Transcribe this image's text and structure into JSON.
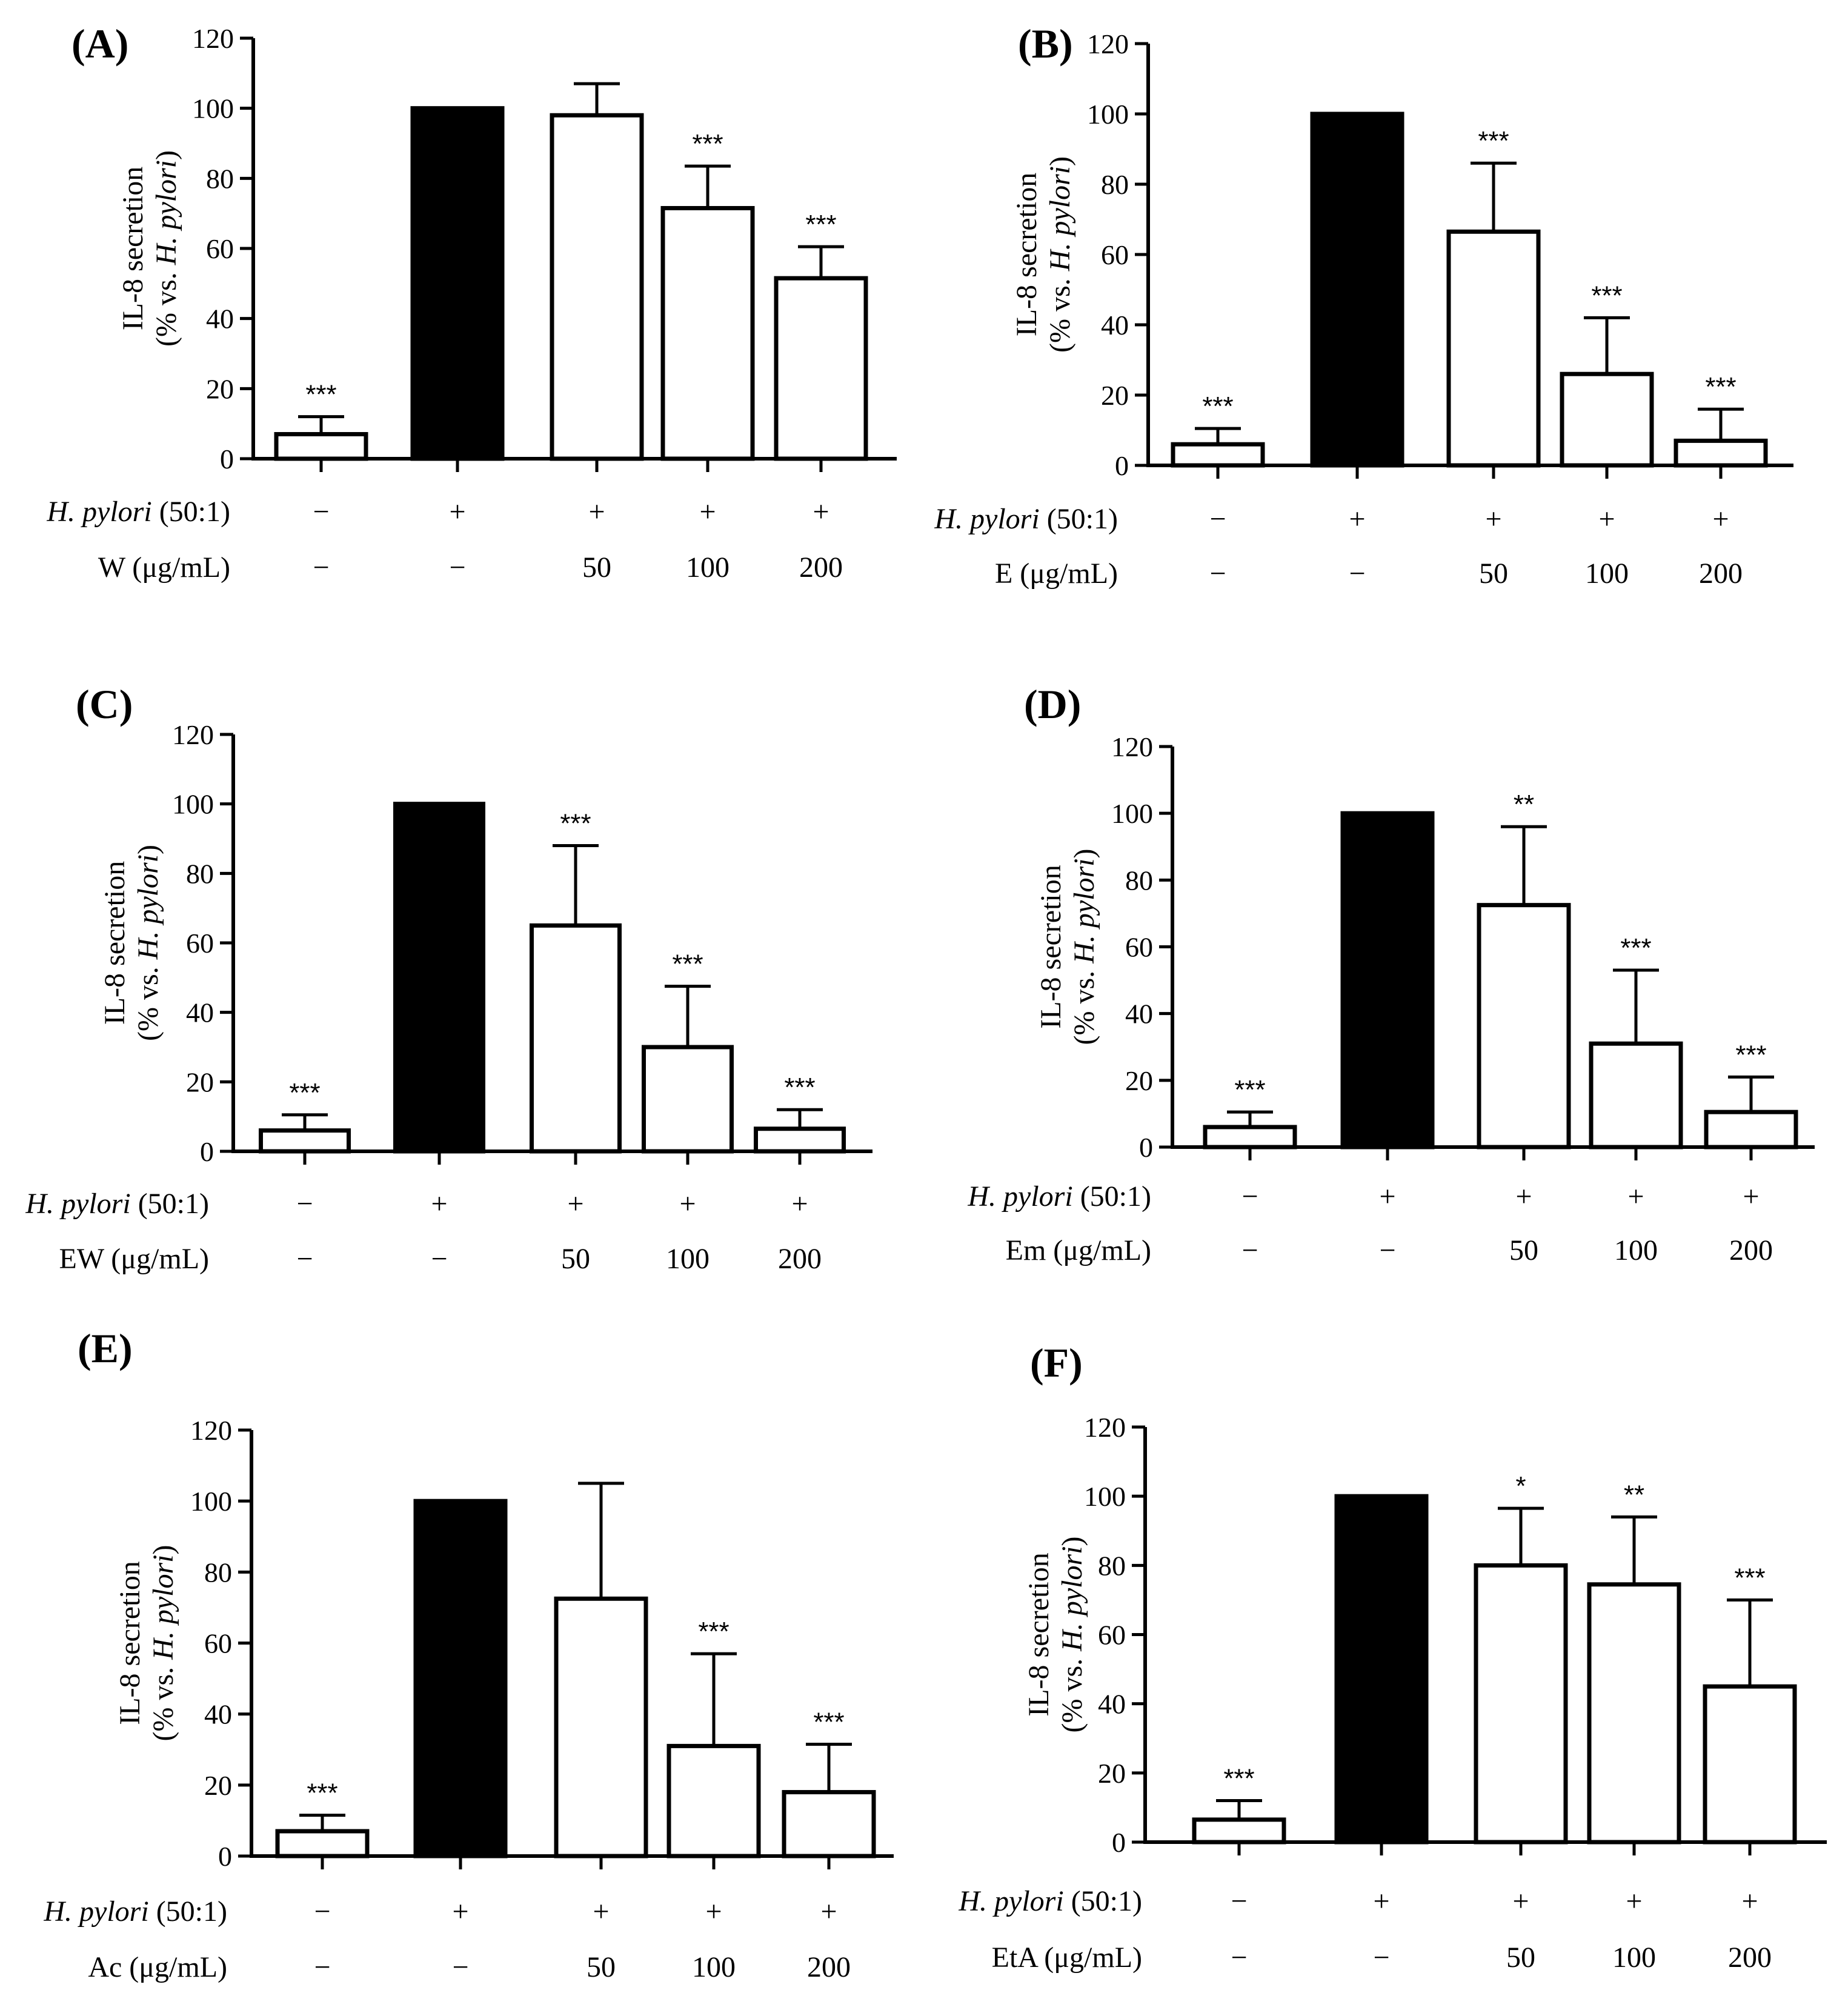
{
  "colors": {
    "treated_bar": "#ffffff",
    "control_bar": "#000000",
    "stroke": "#000000"
  },
  "chart_data": [
    {
      "type": "bar",
      "panel": "(A)",
      "ylabel_line1": "IL-8 secretion",
      "ylabel_line2_prefix": "(% vs. ",
      "ylabel_line2_italic": "H. pylori",
      "ylabel_line2_suffix": ")",
      "ylim": [
        0,
        120
      ],
      "yticks": [
        "0",
        "20",
        "40",
        "60",
        "80",
        "100",
        "120"
      ],
      "row1_label_italic": "H. pylori",
      "row1_label_rest": " (50:1)",
      "row1_values": [
        "−",
        "+",
        "+",
        "+",
        "+"
      ],
      "row2_label": "W (μg/mL)",
      "row2_values": [
        "−",
        "−",
        "50",
        "100",
        "200"
      ],
      "values": [
        7,
        100,
        98,
        71.5,
        51.5
      ],
      "errors": [
        5,
        0,
        9,
        12,
        9
      ],
      "fills": [
        "white",
        "black",
        "white",
        "white",
        "white"
      ],
      "significance": [
        "***",
        "",
        "",
        "***",
        "***"
      ]
    },
    {
      "type": "bar",
      "panel": "(B)",
      "ylabel_line1": "IL-8 secretion",
      "ylabel_line2_prefix": "(% vs. ",
      "ylabel_line2_italic": "H. pylori",
      "ylabel_line2_suffix": ")",
      "ylim": [
        0,
        120
      ],
      "yticks": [
        "0",
        "20",
        "40",
        "60",
        "80",
        "100",
        "120"
      ],
      "row1_label_italic": "H. pylori",
      "row1_label_rest": " (50:1)",
      "row1_values": [
        "−",
        "+",
        "+",
        "+",
        "+"
      ],
      "row2_label": "E (μg/mL)",
      "row2_values": [
        "−",
        "−",
        "50",
        "100",
        "200"
      ],
      "values": [
        6,
        100,
        66.5,
        26,
        7
      ],
      "errors": [
        4.5,
        0,
        19.5,
        16,
        9
      ],
      "fills": [
        "white",
        "black",
        "white",
        "white",
        "white"
      ],
      "significance": [
        "***",
        "",
        "***",
        "***",
        "***"
      ]
    },
    {
      "type": "bar",
      "panel": "(C)",
      "ylabel_line1": "IL-8 secretion",
      "ylabel_line2_prefix": "(% vs. ",
      "ylabel_line2_italic": "H. pylori",
      "ylabel_line2_suffix": ")",
      "ylim": [
        0,
        120
      ],
      "yticks": [
        "0",
        "20",
        "40",
        "60",
        "80",
        "100",
        "120"
      ],
      "row1_label_italic": "H. pylori",
      "row1_label_rest": " (50:1)",
      "row1_values": [
        "−",
        "+",
        "+",
        "+",
        "+"
      ],
      "row2_label": "EW (μg/mL)",
      "row2_values": [
        "−",
        "−",
        "50",
        "100",
        "200"
      ],
      "values": [
        6,
        100,
        65,
        30,
        6.5
      ],
      "errors": [
        4.5,
        0,
        23,
        17.5,
        5.5
      ],
      "fills": [
        "white",
        "black",
        "white",
        "white",
        "white"
      ],
      "significance": [
        "***",
        "",
        "***",
        "***",
        "***"
      ]
    },
    {
      "type": "bar",
      "panel": "(D)",
      "ylabel_line1": "IL-8 secretion",
      "ylabel_line2_prefix": "(% vs. ",
      "ylabel_line2_italic": "H. pylori",
      "ylabel_line2_suffix": ")",
      "ylim": [
        0,
        120
      ],
      "yticks": [
        "0",
        "20",
        "40",
        "60",
        "80",
        "100",
        "120"
      ],
      "row1_label_italic": "H. pylori",
      "row1_label_rest": " (50:1)",
      "row1_values": [
        "−",
        "+",
        "+",
        "+",
        "+"
      ],
      "row2_label": "Em (μg/mL)",
      "row2_values": [
        "−",
        "−",
        "50",
        "100",
        "200"
      ],
      "values": [
        6,
        100,
        72.5,
        31,
        10.5
      ],
      "errors": [
        4.5,
        0,
        23.5,
        22,
        10.5
      ],
      "fills": [
        "white",
        "black",
        "white",
        "white",
        "white"
      ],
      "significance": [
        "***",
        "",
        "**",
        "***",
        "***"
      ]
    },
    {
      "type": "bar",
      "panel": "(E)",
      "ylabel_line1": "IL-8 secretion",
      "ylabel_line2_prefix": "(% vs. ",
      "ylabel_line2_italic": "H. pylori",
      "ylabel_line2_suffix": ")",
      "ylim": [
        0,
        120
      ],
      "yticks": [
        "0",
        "20",
        "40",
        "60",
        "80",
        "100",
        "120"
      ],
      "row1_label_italic": "H. pylori",
      "row1_label_rest": " (50:1)",
      "row1_values": [
        "−",
        "+",
        "+",
        "+",
        "+"
      ],
      "row2_label": "Ac (μg/mL)",
      "row2_values": [
        "−",
        "−",
        "50",
        "100",
        "200"
      ],
      "values": [
        7,
        100,
        72.5,
        31,
        18
      ],
      "errors": [
        4.5,
        0,
        32.5,
        26,
        13.5
      ],
      "fills": [
        "white",
        "black",
        "white",
        "white",
        "white"
      ],
      "significance": [
        "***",
        "",
        "",
        "***",
        "***"
      ]
    },
    {
      "type": "bar",
      "panel": "(F)",
      "ylabel_line1": "IL-8 secretion",
      "ylabel_line2_prefix": "(% vs. ",
      "ylabel_line2_italic": "H. pylori",
      "ylabel_line2_suffix": ")",
      "ylim": [
        0,
        120
      ],
      "yticks": [
        "0",
        "20",
        "40",
        "60",
        "80",
        "100",
        "120"
      ],
      "row1_label_italic": "H. pylori",
      "row1_label_rest": " (50:1)",
      "row1_values": [
        "−",
        "+",
        "+",
        "+",
        "+"
      ],
      "row2_label": "EtA (μg/mL)",
      "row2_values": [
        "−",
        "−",
        "50",
        "100",
        "200"
      ],
      "values": [
        6.5,
        100,
        80,
        74.5,
        45
      ],
      "errors": [
        5.5,
        0,
        16.5,
        19.5,
        25
      ],
      "fills": [
        "white",
        "black",
        "white",
        "white",
        "white"
      ],
      "significance": [
        "***",
        "",
        "*",
        "**",
        "***"
      ]
    }
  ]
}
